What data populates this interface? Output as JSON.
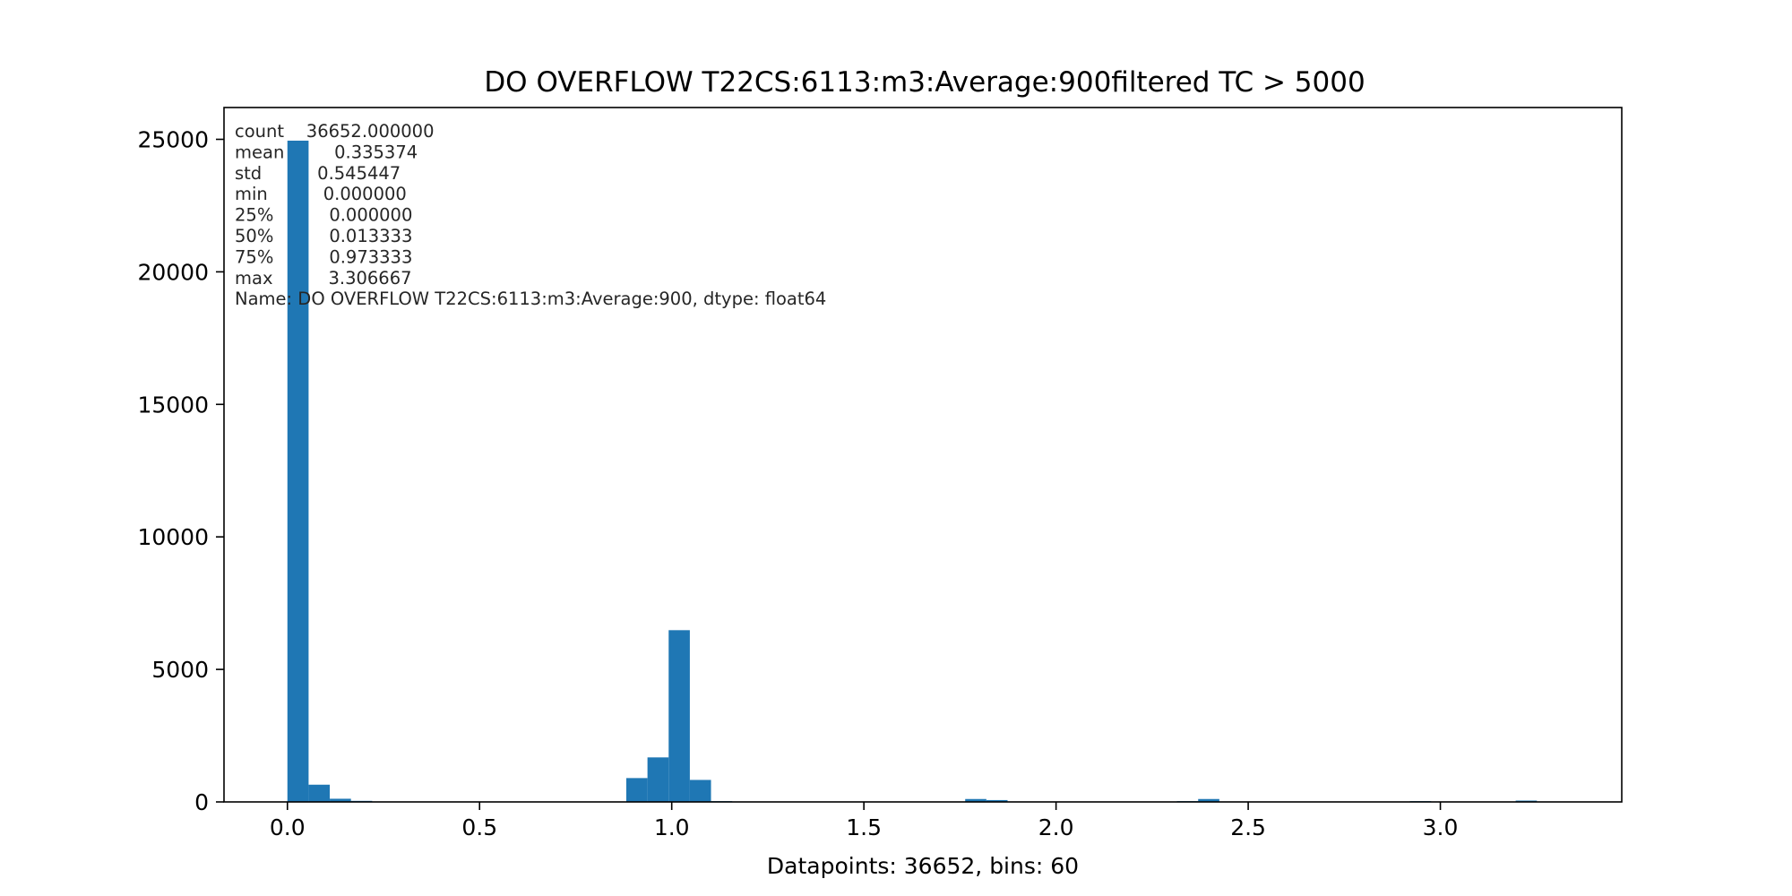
{
  "chart_data": {
    "type": "bar",
    "title": "DO OVERFLOW T22CS:6113:m3:Average:900filtered TC > 5000",
    "xlabel": "Datapoints: 36652, bins: 60",
    "ylabel": "",
    "bar_color": "#1f77b4",
    "grid": false,
    "bin_range": [
      0.0,
      3.306667
    ],
    "bin_count": 60,
    "xlim": [
      -0.165,
      3.472
    ],
    "ylim": [
      0,
      26200
    ],
    "xticks": [
      0.0,
      0.5,
      1.0,
      1.5,
      2.0,
      2.5,
      3.0
    ],
    "xtick_labels": [
      "0.0",
      "0.5",
      "1.0",
      "1.5",
      "2.0",
      "2.5",
      "3.0"
    ],
    "yticks": [
      0,
      5000,
      10000,
      15000,
      20000,
      25000
    ],
    "ytick_labels": [
      "0",
      "5000",
      "10000",
      "15000",
      "20000",
      "25000"
    ],
    "bins": [
      {
        "x0": 0.0,
        "x1": 0.05511,
        "count": 24950
      },
      {
        "x0": 0.05511,
        "x1": 0.11022,
        "count": 650
      },
      {
        "x0": 0.11022,
        "x1": 0.16533,
        "count": 120
      },
      {
        "x0": 0.16533,
        "x1": 0.22044,
        "count": 40
      },
      {
        "x0": 0.22044,
        "x1": 0.27556,
        "count": 10
      },
      {
        "x0": 0.88178,
        "x1": 0.93689,
        "count": 900
      },
      {
        "x0": 0.93689,
        "x1": 0.992,
        "count": 1680
      },
      {
        "x0": 0.992,
        "x1": 1.04711,
        "count": 6480
      },
      {
        "x0": 1.04711,
        "x1": 1.10222,
        "count": 830
      },
      {
        "x0": 1.10222,
        "x1": 1.15733,
        "count": 30
      },
      {
        "x0": 1.76356,
        "x1": 1.81867,
        "count": 110
      },
      {
        "x0": 1.81867,
        "x1": 1.87378,
        "count": 70
      },
      {
        "x0": 2.31467,
        "x1": 2.36978,
        "count": 30
      },
      {
        "x0": 2.36978,
        "x1": 2.42489,
        "count": 110
      },
      {
        "x0": 2.92089,
        "x1": 2.976,
        "count": 30
      },
      {
        "x0": 3.196,
        "x1": 3.25111,
        "count": 50
      }
    ]
  },
  "stats_box": {
    "lines": [
      "count    36652.000000",
      "mean         0.335374",
      "std          0.545447",
      "min          0.000000",
      "25%          0.000000",
      "50%          0.013333",
      "75%          0.973333",
      "max          3.306667",
      "Name: DO OVERFLOW T22CS:6113:m3:Average:900, dtype: float64"
    ]
  }
}
